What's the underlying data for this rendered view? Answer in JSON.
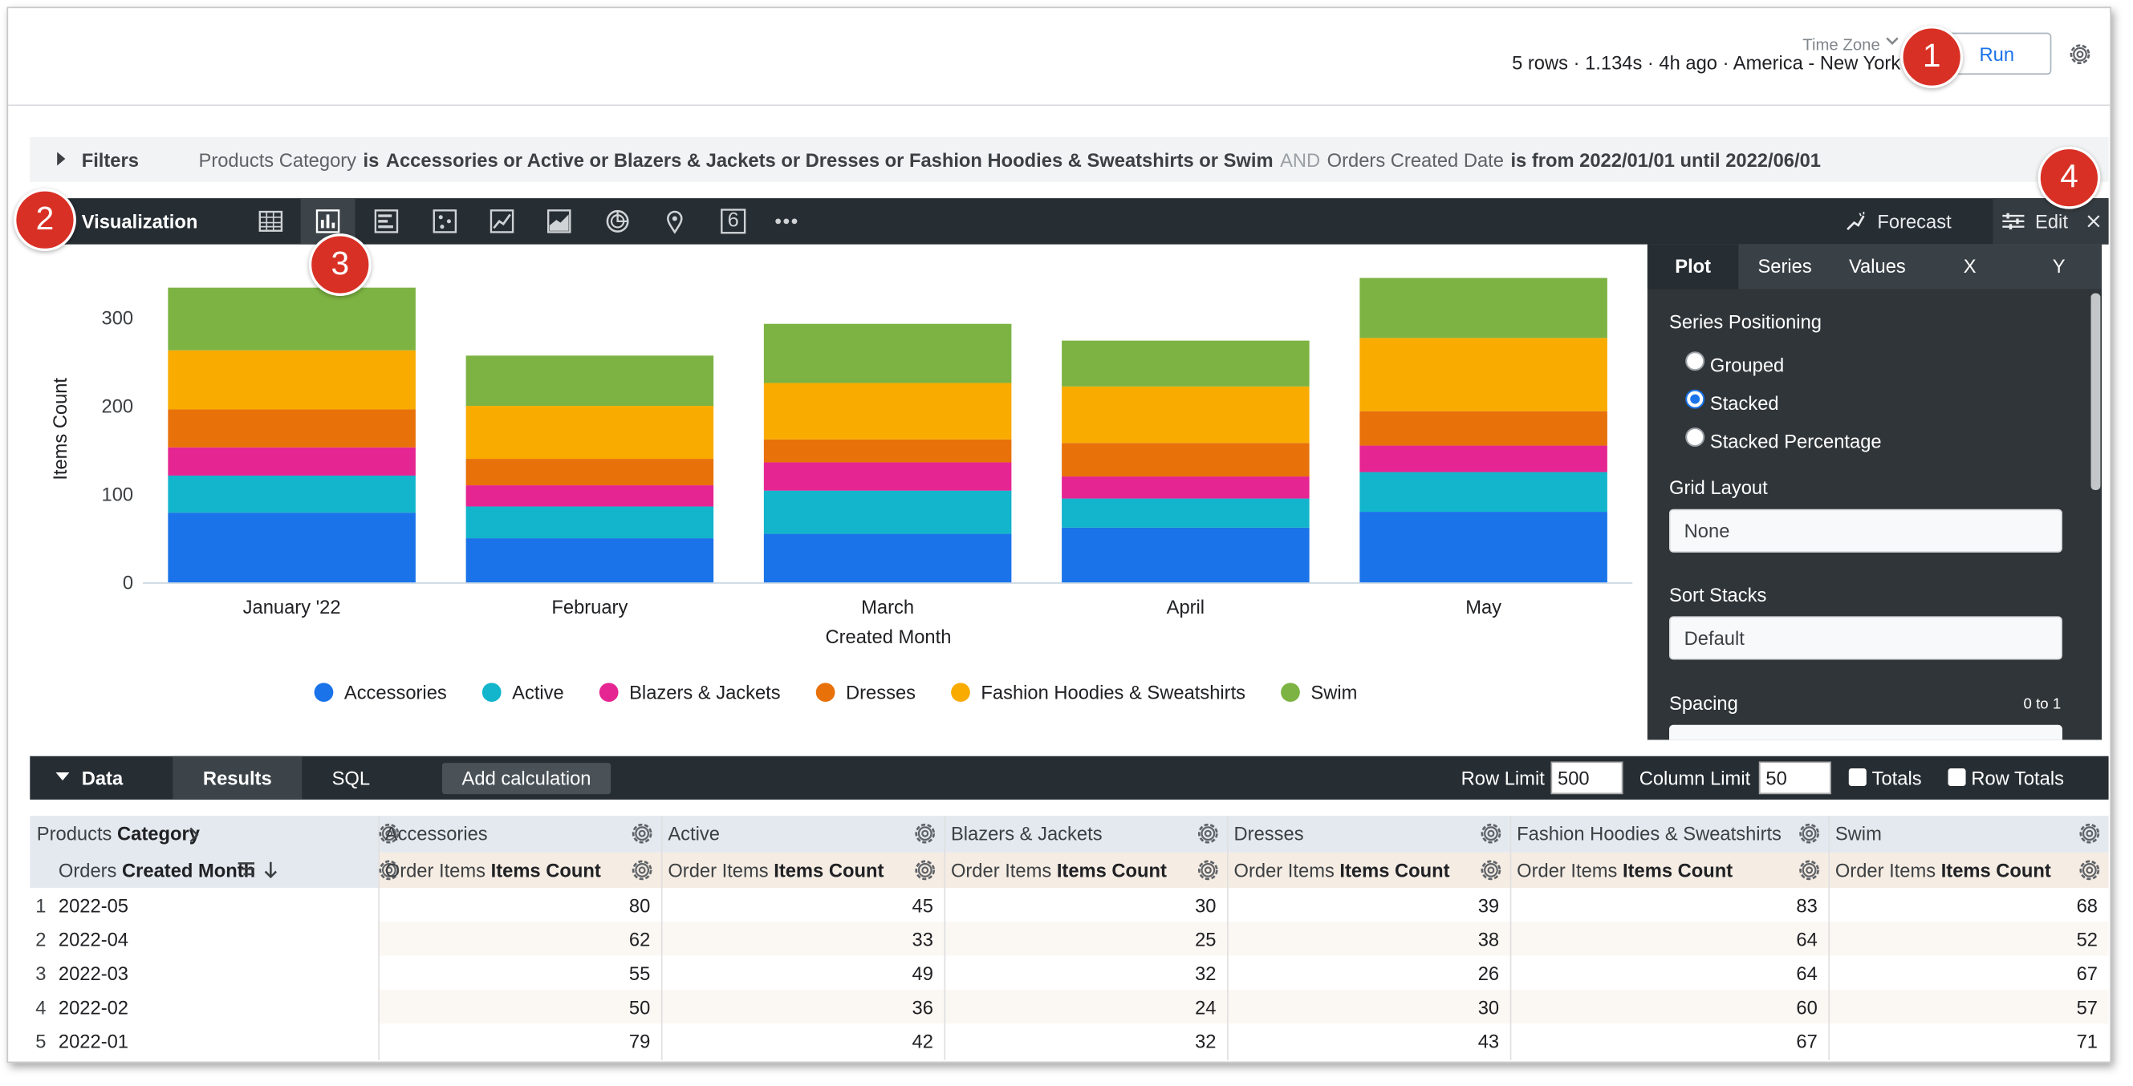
{
  "header": {
    "time_zone_label": "Time Zone",
    "status": "5 rows · 1.134s · 4h ago · America - New York",
    "run_button": "Run"
  },
  "callouts": [
    "1",
    "2",
    "3",
    "4"
  ],
  "filters": {
    "label": "Filters",
    "parts": [
      "Products Category",
      "is",
      "Accessories or Active or Blazers & Jackets or Dresses or Fashion Hoodies & Sweatshirts or Swim",
      "AND",
      "Orders Created Date",
      "is from 2022/01/01 until 2022/06/01"
    ]
  },
  "visualization_bar": {
    "title": "Visualization",
    "single_value_icon": "6",
    "forecast": "Forecast",
    "edit": "Edit",
    "selected_tool": 1
  },
  "chart_data": {
    "type": "bar",
    "stacked": true,
    "legend": "bottom",
    "grid": false,
    "x_label": "Created Month",
    "y_label": "Items Count",
    "categories": [
      "January '22",
      "February",
      "March",
      "April",
      "May"
    ],
    "series": [
      {
        "name": "Accessories",
        "color": "#1a73e8",
        "values": [
          79,
          50,
          55,
          62,
          80
        ]
      },
      {
        "name": "Active",
        "color": "#12b5cb",
        "values": [
          42,
          36,
          49,
          33,
          45
        ]
      },
      {
        "name": "Blazers & Jackets",
        "color": "#e52592",
        "values": [
          32,
          24,
          32,
          25,
          30
        ]
      },
      {
        "name": "Dresses",
        "color": "#e8710a",
        "values": [
          43,
          30,
          26,
          38,
          39
        ]
      },
      {
        "name": "Fashion Hoodies & Sweatshirts",
        "color": "#f9ab00",
        "values": [
          67,
          60,
          64,
          64,
          83
        ]
      },
      {
        "name": "Swim",
        "color": "#7cb342",
        "values": [
          71,
          57,
          67,
          52,
          68
        ]
      }
    ],
    "ylim": [
      0,
      360
    ],
    "yticks": [
      0,
      100,
      200,
      300
    ]
  },
  "edit_panel": {
    "tabs": [
      "Plot",
      "Series",
      "Values",
      "X",
      "Y"
    ],
    "active_tab": 0,
    "series_positioning": {
      "label": "Series Positioning",
      "options": [
        "Grouped",
        "Stacked",
        "Stacked Percentage"
      ],
      "selected": 1
    },
    "grid_layout": {
      "label": "Grid Layout",
      "value": "None"
    },
    "sort_stacks": {
      "label": "Sort Stacks",
      "value": "Default"
    },
    "spacing": {
      "label": "Spacing",
      "range": "0 to 1"
    }
  },
  "data_panel": {
    "title": "Data",
    "tabs": [
      "Results",
      "SQL"
    ],
    "active_tab": 0,
    "add_calculation": "Add calculation",
    "row_limit": {
      "label": "Row Limit",
      "value": "500"
    },
    "column_limit": {
      "label": "Column Limit",
      "value": "50"
    },
    "totals": "Totals",
    "row_totals": "Row Totals"
  },
  "table": {
    "pivot_header": {
      "view": "Products",
      "field": "Category"
    },
    "dimension_header": {
      "view": "Orders",
      "field": "Created Month"
    },
    "measure_header": {
      "view": "Order Items",
      "field": "Items Count"
    },
    "row_numbers": [
      1,
      2,
      3,
      4,
      5
    ],
    "row_labels": [
      "2022-05",
      "2022-04",
      "2022-03",
      "2022-02",
      "2022-01"
    ]
  }
}
